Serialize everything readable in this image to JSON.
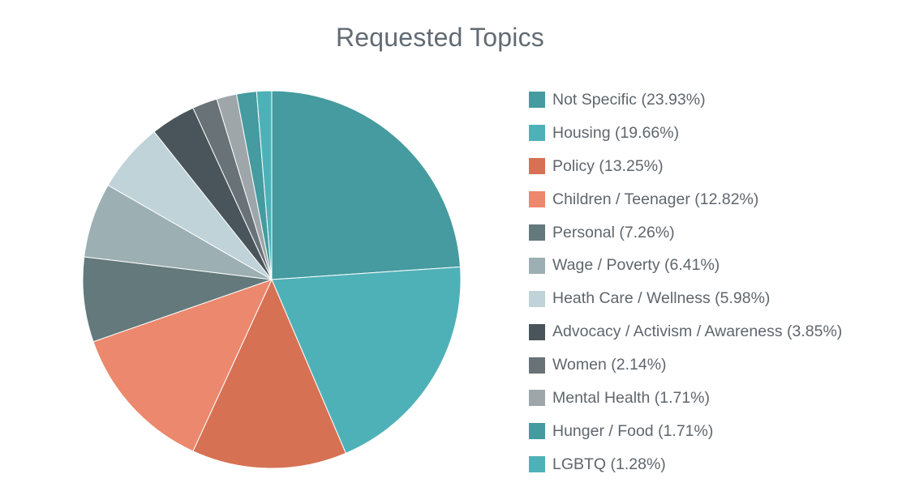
{
  "chart_data": {
    "type": "pie",
    "title": "Requested Topics",
    "slices": [
      {
        "label": "Not Specific",
        "value": 23.93,
        "color": "#459b9f"
      },
      {
        "label": "Housing",
        "value": 19.66,
        "color": "#4fb1b8"
      },
      {
        "label": "Policy",
        "value": 13.25,
        "color": "#d77154"
      },
      {
        "label": "Children / Teenager",
        "value": 12.82,
        "color": "#eb886d"
      },
      {
        "label": "Personal",
        "value": 7.26,
        "color": "#64797c"
      },
      {
        "label": "Wage / Poverty",
        "value": 6.41,
        "color": "#9cafb2"
      },
      {
        "label": "Heath Care / Wellness",
        "value": 5.98,
        "color": "#bfd3d8"
      },
      {
        "label": "Advocacy / Activism / Awareness",
        "value": 3.85,
        "color": "#4a555b"
      },
      {
        "label": "Women",
        "value": 2.14,
        "color": "#687277"
      },
      {
        "label": "Mental Health",
        "value": 1.71,
        "color": "#9ea6a9"
      },
      {
        "label": "Hunger / Food",
        "value": 1.71,
        "color": "#459b9f"
      },
      {
        "label": "LGBTQ",
        "value": 1.28,
        "color": "#4fb1b8"
      }
    ],
    "legend_position": "right",
    "legend_entries": [
      "Not Specific (23.93%)",
      "Housing (19.66%)",
      "Policy (13.25%)",
      "Children / Teenager (12.82%)",
      "Personal (7.26%)",
      "Wage / Poverty (6.41%)",
      "Heath Care / Wellness (5.98%)",
      "Advocacy / Activism / Awareness (3.85%)",
      "Women (2.14%)",
      "Mental Health (1.71%)",
      "Hunger / Food (1.71%)",
      "LGBTQ (1.28%)"
    ]
  }
}
